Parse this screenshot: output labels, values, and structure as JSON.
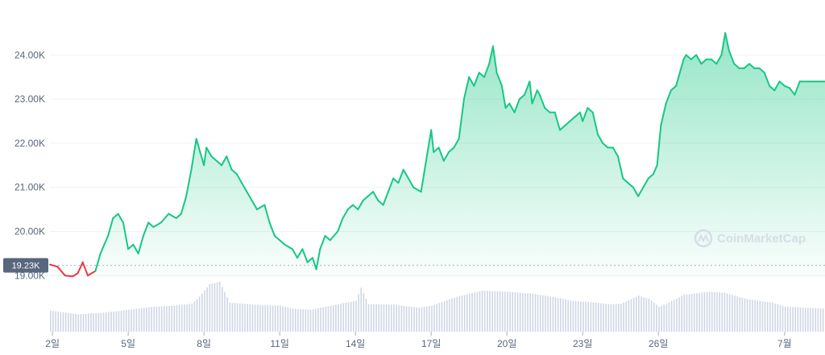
{
  "watermark": {
    "text": "CoinMarketCap"
  },
  "colors": {
    "line_up": "#16c784",
    "line_down": "#ea3943",
    "area_top": "#16c784",
    "volume": "#cfd6e4",
    "grid": "#eff2f5",
    "badge": "#58667e",
    "watermark": "#d7dde6"
  },
  "chart_data": {
    "type": "area",
    "title": "",
    "xlabel": "",
    "ylabel": "",
    "ylim": [
      18950,
      24700
    ],
    "yticks": [
      {
        "value": 19000,
        "label": "19.00K"
      },
      {
        "value": 20000,
        "label": "20.00K"
      },
      {
        "value": 21000,
        "label": "21.00K"
      },
      {
        "value": 22000,
        "label": "22.00K"
      },
      {
        "value": 23000,
        "label": "23.00K"
      },
      {
        "value": 24000,
        "label": "24.00K"
      }
    ],
    "xticks": [
      {
        "day": 2,
        "label": "2일"
      },
      {
        "day": 5,
        "label": "5일"
      },
      {
        "day": 8,
        "label": "8일"
      },
      {
        "day": 11,
        "label": "11일"
      },
      {
        "day": 14,
        "label": "14일"
      },
      {
        "day": 17,
        "label": "17일"
      },
      {
        "day": 20,
        "label": "20일"
      },
      {
        "day": 23,
        "label": "23일"
      },
      {
        "day": 26,
        "label": "26일"
      },
      {
        "day": 31,
        "label": "7월"
      }
    ],
    "xlim": [
      1.9,
      32.6
    ],
    "reference_price": {
      "value": 19230,
      "label": "19.23K"
    },
    "series": [
      {
        "values": [
          [
            1.9,
            19250
          ],
          [
            2.2,
            19200
          ],
          [
            2.5,
            19000
          ],
          [
            2.8,
            18980
          ],
          [
            3.0,
            19050
          ],
          [
            3.2,
            19300
          ],
          [
            3.4,
            19000
          ],
          [
            3.7,
            19100
          ],
          [
            3.9,
            19500
          ],
          [
            4.2,
            19900
          ],
          [
            4.4,
            20300
          ],
          [
            4.6,
            20400
          ],
          [
            4.8,
            20200
          ],
          [
            5.0,
            19600
          ],
          [
            5.2,
            19700
          ],
          [
            5.4,
            19500
          ],
          [
            5.6,
            19900
          ],
          [
            5.8,
            20200
          ],
          [
            6.0,
            20100
          ],
          [
            6.3,
            20200
          ],
          [
            6.6,
            20400
          ],
          [
            6.9,
            20300
          ],
          [
            7.1,
            20400
          ],
          [
            7.3,
            20800
          ],
          [
            7.5,
            21400
          ],
          [
            7.7,
            22100
          ],
          [
            7.85,
            21800
          ],
          [
            8.0,
            21500
          ],
          [
            8.1,
            21900
          ],
          [
            8.3,
            21700
          ],
          [
            8.5,
            21600
          ],
          [
            8.7,
            21500
          ],
          [
            8.9,
            21700
          ],
          [
            9.1,
            21400
          ],
          [
            9.3,
            21300
          ],
          [
            9.5,
            21100
          ],
          [
            9.7,
            20900
          ],
          [
            9.9,
            20700
          ],
          [
            10.1,
            20500
          ],
          [
            10.4,
            20600
          ],
          [
            10.6,
            20200
          ],
          [
            10.8,
            19900
          ],
          [
            11.0,
            19800
          ],
          [
            11.2,
            19700
          ],
          [
            11.5,
            19600
          ],
          [
            11.7,
            19400
          ],
          [
            11.9,
            19600
          ],
          [
            12.1,
            19300
          ],
          [
            12.3,
            19400
          ],
          [
            12.45,
            19140
          ],
          [
            12.6,
            19600
          ],
          [
            12.8,
            19900
          ],
          [
            13.0,
            19800
          ],
          [
            13.3,
            20000
          ],
          [
            13.5,
            20300
          ],
          [
            13.7,
            20500
          ],
          [
            13.9,
            20600
          ],
          [
            14.1,
            20500
          ],
          [
            14.3,
            20700
          ],
          [
            14.5,
            20800
          ],
          [
            14.7,
            20900
          ],
          [
            14.9,
            20700
          ],
          [
            15.1,
            20600
          ],
          [
            15.3,
            20900
          ],
          [
            15.5,
            21200
          ],
          [
            15.7,
            21100
          ],
          [
            15.9,
            21400
          ],
          [
            16.1,
            21200
          ],
          [
            16.3,
            21000
          ],
          [
            16.6,
            20900
          ],
          [
            16.8,
            21600
          ],
          [
            17.0,
            22300
          ],
          [
            17.1,
            21800
          ],
          [
            17.3,
            21900
          ],
          [
            17.5,
            21600
          ],
          [
            17.7,
            21800
          ],
          [
            17.9,
            21900
          ],
          [
            18.1,
            22100
          ],
          [
            18.3,
            23000
          ],
          [
            18.5,
            23500
          ],
          [
            18.7,
            23300
          ],
          [
            18.9,
            23600
          ],
          [
            19.1,
            23500
          ],
          [
            19.3,
            23800
          ],
          [
            19.45,
            24200
          ],
          [
            19.6,
            23600
          ],
          [
            19.8,
            23300
          ],
          [
            19.95,
            22800
          ],
          [
            20.1,
            22900
          ],
          [
            20.3,
            22700
          ],
          [
            20.5,
            23000
          ],
          [
            20.7,
            23100
          ],
          [
            20.9,
            23400
          ],
          [
            21.0,
            22900
          ],
          [
            21.2,
            23200
          ],
          [
            21.3,
            23100
          ],
          [
            21.5,
            22800
          ],
          [
            21.7,
            22700
          ],
          [
            21.9,
            22700
          ],
          [
            22.1,
            22300
          ],
          [
            22.3,
            22400
          ],
          [
            22.5,
            22500
          ],
          [
            22.7,
            22600
          ],
          [
            22.9,
            22700
          ],
          [
            23.0,
            22500
          ],
          [
            23.2,
            22800
          ],
          [
            23.4,
            22700
          ],
          [
            23.6,
            22200
          ],
          [
            23.8,
            22000
          ],
          [
            24.0,
            21900
          ],
          [
            24.2,
            21900
          ],
          [
            24.4,
            21700
          ],
          [
            24.6,
            21200
          ],
          [
            24.8,
            21100
          ],
          [
            25.0,
            21000
          ],
          [
            25.2,
            20800
          ],
          [
            25.4,
            21000
          ],
          [
            25.6,
            21200
          ],
          [
            25.8,
            21300
          ],
          [
            25.95,
            21500
          ],
          [
            26.1,
            22400
          ],
          [
            26.3,
            22900
          ],
          [
            26.5,
            23200
          ],
          [
            26.7,
            23300
          ],
          [
            26.8,
            23500
          ],
          [
            27.0,
            23900
          ],
          [
            27.1,
            24000
          ],
          [
            27.3,
            23900
          ],
          [
            27.5,
            24000
          ],
          [
            27.7,
            23800
          ],
          [
            27.9,
            23900
          ],
          [
            28.1,
            23900
          ],
          [
            28.3,
            23800
          ],
          [
            28.5,
            24000
          ],
          [
            28.65,
            24500
          ],
          [
            28.8,
            24100
          ],
          [
            29.0,
            23800
          ],
          [
            29.2,
            23700
          ],
          [
            29.4,
            23700
          ],
          [
            29.6,
            23800
          ],
          [
            29.8,
            23700
          ],
          [
            30.0,
            23700
          ],
          [
            30.2,
            23600
          ],
          [
            30.4,
            23300
          ],
          [
            30.6,
            23200
          ],
          [
            30.8,
            23400
          ],
          [
            31.0,
            23300
          ],
          [
            31.2,
            23250
          ],
          [
            31.4,
            23100
          ],
          [
            31.6,
            23400
          ],
          [
            32.6,
            23400
          ]
        ]
      }
    ],
    "volume": {
      "values": [
        [
          1.9,
          0.42
        ],
        [
          3.0,
          0.35
        ],
        [
          4.0,
          0.38
        ],
        [
          5.0,
          0.44
        ],
        [
          6.0,
          0.5
        ],
        [
          6.8,
          0.52
        ],
        [
          7.5,
          0.56
        ],
        [
          7.8,
          0.7
        ],
        [
          8.2,
          0.95
        ],
        [
          8.6,
          1.0
        ],
        [
          9.0,
          0.58
        ],
        [
          9.5,
          0.56
        ],
        [
          10.0,
          0.54
        ],
        [
          11.0,
          0.52
        ],
        [
          11.5,
          0.46
        ],
        [
          12.2,
          0.44
        ],
        [
          13.0,
          0.52
        ],
        [
          14.0,
          0.62
        ],
        [
          14.2,
          0.88
        ],
        [
          14.5,
          0.55
        ],
        [
          15.5,
          0.54
        ],
        [
          16.5,
          0.48
        ],
        [
          17.0,
          0.52
        ],
        [
          18.0,
          0.7
        ],
        [
          19.0,
          0.82
        ],
        [
          20.0,
          0.8
        ],
        [
          21.0,
          0.76
        ],
        [
          22.0,
          0.68
        ],
        [
          22.5,
          0.62
        ],
        [
          23.5,
          0.58
        ],
        [
          24.0,
          0.55
        ],
        [
          24.5,
          0.56
        ],
        [
          25.2,
          0.72
        ],
        [
          25.6,
          0.66
        ],
        [
          26.0,
          0.5
        ],
        [
          26.3,
          0.56
        ],
        [
          27.0,
          0.74
        ],
        [
          28.0,
          0.8
        ],
        [
          28.6,
          0.78
        ],
        [
          29.5,
          0.65
        ],
        [
          30.5,
          0.58
        ],
        [
          31.0,
          0.5
        ],
        [
          32.6,
          0.46
        ]
      ]
    }
  }
}
